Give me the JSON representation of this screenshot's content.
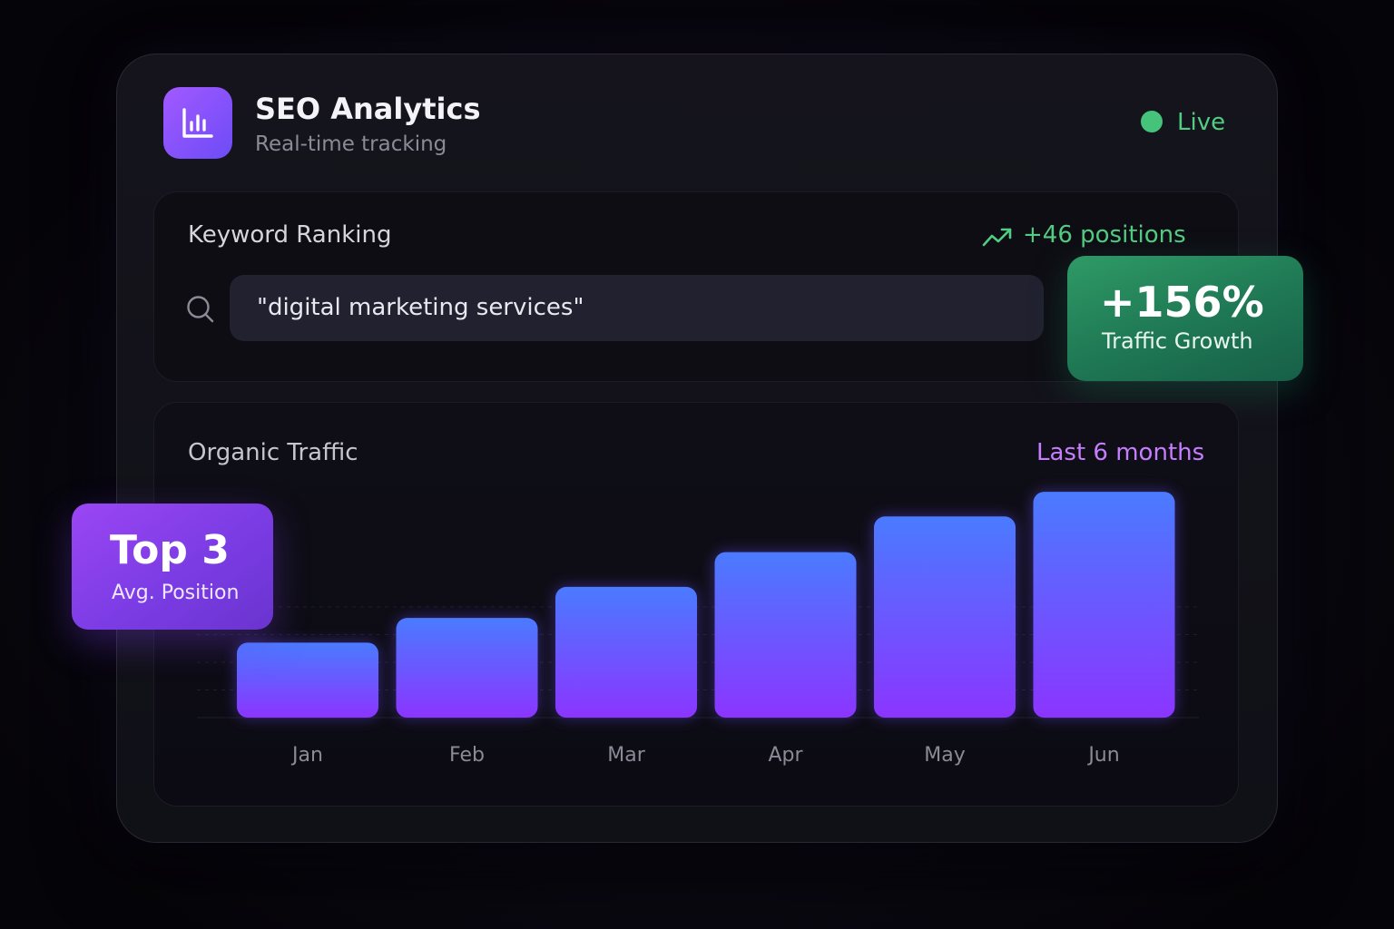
{
  "header": {
    "title": "SEO Analytics",
    "subtitle": "Real-time tracking",
    "status": "Live",
    "icon": "bar-chart-icon"
  },
  "keyword_panel": {
    "title": "Keyword Ranking",
    "delta": "+46 positions",
    "query": "\"digital marketing services\""
  },
  "growth_badge": {
    "value": "+156%",
    "label": "Traffic Growth"
  },
  "traffic_panel": {
    "title": "Organic Traffic",
    "range": "Last 6 months"
  },
  "position_badge": {
    "value": "Top 3",
    "label": "Avg. Position"
  },
  "colors": {
    "accent_purple": "#a259ff",
    "accent_green": "#52cc82",
    "bar_top": "#4a7bff",
    "bar_bottom": "#8b35ff"
  },
  "chart_data": {
    "type": "bar",
    "categories": [
      "Jan",
      "Feb",
      "Mar",
      "Apr",
      "May",
      "Jun"
    ],
    "values": [
      82,
      109,
      143,
      181,
      220,
      247
    ],
    "ylim": [
      0,
      260
    ],
    "grid": true
  }
}
